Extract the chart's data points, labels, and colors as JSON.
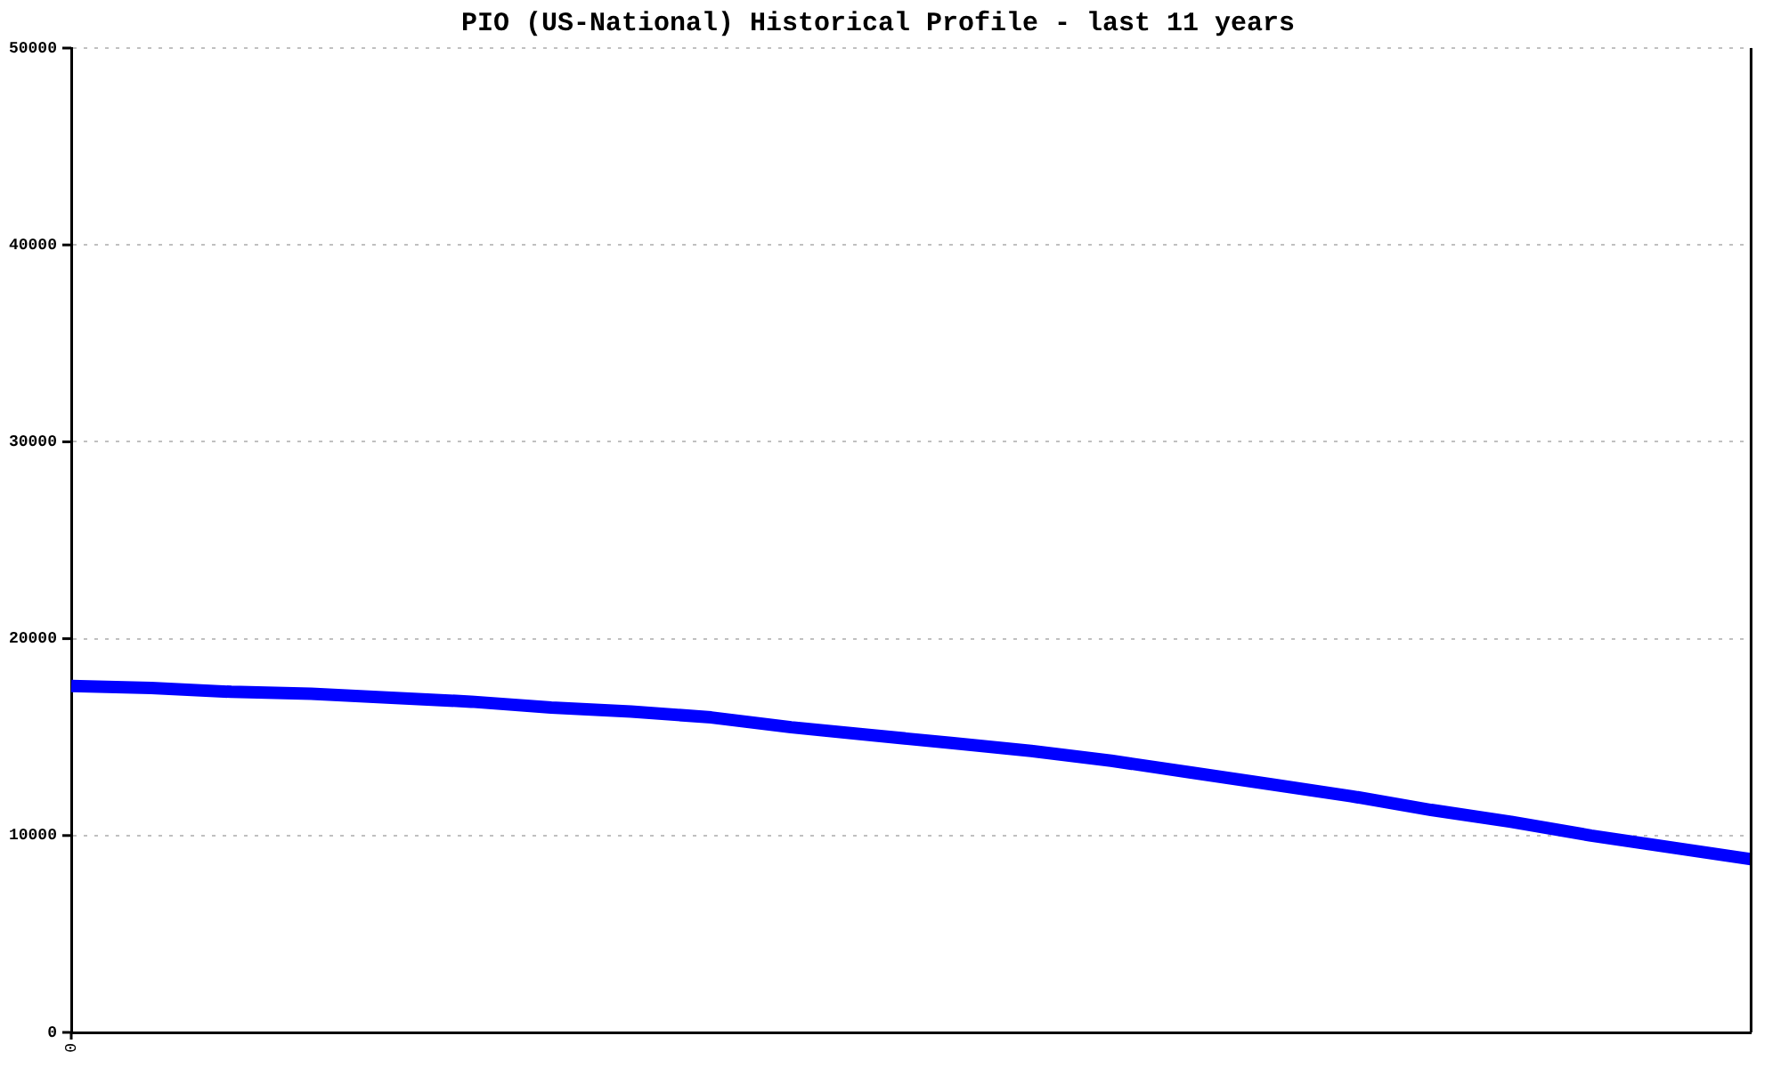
{
  "chart_data": {
    "type": "line",
    "title": "PIO (US-National) Historical Profile - last 11 years",
    "categories": [
      "0",
      null,
      null,
      null,
      null,
      null,
      null,
      null,
      null,
      null,
      null,
      null,
      null,
      null,
      null,
      null,
      null,
      null,
      null,
      null,
      null,
      null
    ],
    "series": [
      {
        "color": "#0000ff",
        "values": [
          17600,
          17500,
          17300,
          17200,
          17000,
          16800,
          16500,
          16300,
          16000,
          15500,
          15100,
          14700,
          14300,
          13800,
          13200,
          12600,
          12000,
          11300,
          10700,
          10000,
          9400,
          8800
        ]
      }
    ],
    "ylim": [
      0,
      50000
    ],
    "yticks": [
      0,
      10000,
      20000,
      30000,
      40000,
      50000
    ],
    "grid": "y",
    "marker": "none",
    "line_style": "solid"
  }
}
